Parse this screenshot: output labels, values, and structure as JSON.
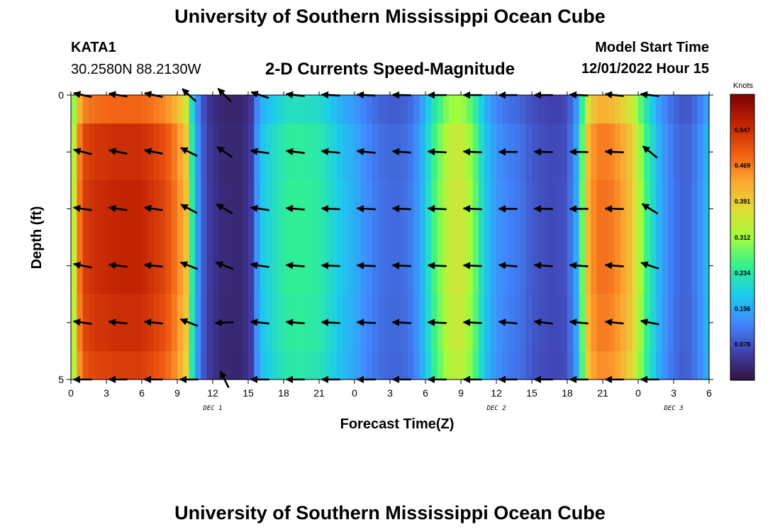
{
  "header": {
    "title": "University of Southern Mississippi Ocean Cube",
    "station_name": "KATA1",
    "station_coords": "30.2580N  88.2130W",
    "plot_title": "2-D Currents Speed-Magnitude",
    "model_start_label": "Model Start Time",
    "model_start_value": "12/01/2022 Hour 15"
  },
  "footer": {
    "title": "University of Southern Mississippi Ocean Cube"
  },
  "chart_data": {
    "type": "heatmap",
    "title": "2-D Currents Speed-Magnitude",
    "xlabel": "Forecast Time(Z)",
    "ylabel": "Depth (ft)",
    "x_tick_labels": [
      "0",
      "3",
      "6",
      "9",
      "12",
      "15",
      "18",
      "21",
      "0",
      "3",
      "6",
      "9",
      "12",
      "15",
      "18",
      "21",
      "0",
      "3",
      "6"
    ],
    "x_range_hours": [
      0,
      54
    ],
    "date_labels": [
      {
        "text": "DEC 1",
        "hour": 12
      },
      {
        "text": "DEC 2",
        "hour": 36
      },
      {
        "text": "DEC 3",
        "hour": 51
      }
    ],
    "y_tick_labels": [
      "0",
      "5"
    ],
    "ylim": [
      0,
      5
    ],
    "y_direction": "down",
    "colorbar": {
      "title": "Knots",
      "range": [
        0,
        0.625
      ],
      "ticks": [
        0.078,
        0.156,
        0.234,
        0.312,
        0.391,
        0.469,
        0.547
      ],
      "colormap": "turbo"
    },
    "speed_profile": {
      "hours": [
        0,
        0.5,
        1,
        2,
        4,
        6,
        8,
        9,
        9.8,
        10.2,
        10.8,
        11.5,
        12.5,
        13.5,
        14.5,
        15.3,
        16,
        17,
        18,
        19,
        20,
        21,
        22,
        23,
        24,
        25,
        26,
        27,
        28,
        29,
        29.5,
        30,
        30.5,
        31,
        32,
        33,
        34,
        35,
        36,
        37,
        38,
        39,
        40,
        41,
        42,
        43,
        43.3,
        43.8,
        44.5,
        45.5,
        46.5,
        47.5,
        48,
        48.5,
        49,
        49.5,
        50,
        51,
        52,
        53,
        54
      ],
      "speed_knots": [
        0.26,
        0.43,
        0.53,
        0.55,
        0.56,
        0.56,
        0.52,
        0.47,
        0.4,
        0.25,
        0.13,
        0.06,
        0.035,
        0.03,
        0.03,
        0.06,
        0.18,
        0.21,
        0.24,
        0.25,
        0.245,
        0.24,
        0.21,
        0.18,
        0.16,
        0.13,
        0.11,
        0.1,
        0.1,
        0.12,
        0.15,
        0.19,
        0.24,
        0.28,
        0.35,
        0.36,
        0.3,
        0.19,
        0.14,
        0.12,
        0.11,
        0.085,
        0.075,
        0.07,
        0.08,
        0.18,
        0.3,
        0.43,
        0.48,
        0.48,
        0.45,
        0.4,
        0.34,
        0.28,
        0.23,
        0.19,
        0.15,
        0.11,
        0.09,
        0.12,
        0.18
      ]
    },
    "depth_rows": [
      0.25,
      1.25,
      2.25,
      3.25,
      4.25,
      4.75
    ],
    "row_factor": [
      0.88,
      0.98,
      1.0,
      1.0,
      0.98,
      0.95
    ],
    "vector_hours": [
      1,
      4,
      7,
      10,
      13,
      16,
      19,
      22,
      25,
      28,
      31,
      34,
      37,
      40,
      43,
      46,
      49
    ],
    "vector_rows": [
      {
        "depth": 0,
        "vectors": [
          [
            -0.9,
            0.2
          ],
          [
            -0.9,
            0.15
          ],
          [
            -0.9,
            0.2
          ],
          [
            -0.6,
            0.55
          ],
          [
            -0.6,
            0.6
          ],
          [
            -0.9,
            0.3
          ],
          [
            -0.9,
            0.1
          ],
          [
            -0.9,
            0.05
          ],
          [
            -0.9,
            0.05
          ],
          [
            -0.9,
            0.02
          ],
          [
            -0.9,
            0.0
          ],
          [
            -0.9,
            0.0
          ],
          [
            -0.9,
            0.0
          ],
          [
            -0.9,
            0.0
          ],
          [
            -0.9,
            0.05
          ],
          [
            -0.9,
            0.1
          ],
          [
            -0.9,
            0.1
          ]
        ]
      },
      {
        "depth": 1,
        "vectors": [
          [
            -1.0,
            0.25
          ],
          [
            -1.0,
            0.2
          ],
          [
            -1.0,
            0.2
          ],
          [
            -0.9,
            0.45
          ],
          [
            -0.8,
            0.55
          ],
          [
            -1.0,
            0.15
          ],
          [
            -1.0,
            0.12
          ],
          [
            -1.0,
            0.1
          ],
          [
            -1.0,
            0.1
          ],
          [
            -1.0,
            0.08
          ],
          [
            -1.0,
            0.05
          ],
          [
            -1.0,
            0.05
          ],
          [
            -1.0,
            0.0
          ],
          [
            -1.0,
            0.02
          ],
          [
            -1.0,
            0.02
          ],
          [
            -1.0,
            0.05
          ],
          [
            -0.8,
            0.65
          ]
        ]
      },
      {
        "depth": 2,
        "vectors": [
          [
            -1.0,
            0.15
          ],
          [
            -1.0,
            0.15
          ],
          [
            -1.0,
            0.15
          ],
          [
            -0.85,
            0.45
          ],
          [
            -0.85,
            0.5
          ],
          [
            -1.0,
            0.15
          ],
          [
            -1.0,
            0.08
          ],
          [
            -1.0,
            0.05
          ],
          [
            -1.0,
            0.05
          ],
          [
            -1.0,
            0.05
          ],
          [
            -1.0,
            0.05
          ],
          [
            -1.0,
            0.05
          ],
          [
            -1.0,
            0.0
          ],
          [
            -1.0,
            0.02
          ],
          [
            -1.0,
            0.0
          ],
          [
            -1.0,
            0.02
          ],
          [
            -0.8,
            0.5
          ]
        ]
      },
      {
        "depth": 3,
        "vectors": [
          [
            -1.0,
            0.2
          ],
          [
            -1.0,
            0.12
          ],
          [
            -1.0,
            0.1
          ],
          [
            -0.9,
            0.35
          ],
          [
            -0.9,
            0.35
          ],
          [
            -1.0,
            0.15
          ],
          [
            -1.0,
            0.08
          ],
          [
            -1.0,
            0.05
          ],
          [
            -1.0,
            0.05
          ],
          [
            -1.0,
            0.05
          ],
          [
            -1.0,
            0.05
          ],
          [
            -1.0,
            0.05
          ],
          [
            -1.0,
            0.08
          ],
          [
            -1.0,
            0.08
          ],
          [
            -1.0,
            0.08
          ],
          [
            -1.0,
            0.08
          ],
          [
            -0.9,
            0.3
          ]
        ]
      },
      {
        "depth": 4,
        "vectors": [
          [
            -1.0,
            0.15
          ],
          [
            -1.0,
            0.1
          ],
          [
            -1.0,
            0.1
          ],
          [
            -0.9,
            0.35
          ],
          [
            -1.0,
            -0.05
          ],
          [
            -1.0,
            0.1
          ],
          [
            -1.0,
            0.08
          ],
          [
            -1.0,
            0.05
          ],
          [
            -1.0,
            0.05
          ],
          [
            -1.0,
            0.05
          ],
          [
            -1.0,
            0.05
          ],
          [
            -1.0,
            0.05
          ],
          [
            -1.0,
            0.1
          ],
          [
            -1.0,
            0.12
          ],
          [
            -1.0,
            0.1
          ],
          [
            -1.0,
            0.1
          ],
          [
            -1.0,
            0.2
          ]
        ]
      },
      {
        "depth": 5,
        "vectors": [
          [
            -1.0,
            0.0
          ],
          [
            -1.0,
            0.0
          ],
          [
            -1.0,
            0.0
          ],
          [
            -0.9,
            0.0
          ],
          [
            -0.45,
            0.9
          ],
          [
            -1.0,
            0.0
          ],
          [
            -1.0,
            0.0
          ],
          [
            -1.0,
            0.0
          ],
          [
            -1.0,
            0.0
          ],
          [
            -1.0,
            0.0
          ],
          [
            -1.0,
            0.0
          ],
          [
            -1.0,
            0.0
          ],
          [
            -1.0,
            0.0
          ],
          [
            -1.0,
            0.0
          ],
          [
            -1.0,
            0.0
          ],
          [
            -1.0,
            0.0
          ],
          [
            -1.0,
            0.0
          ]
        ]
      }
    ]
  }
}
